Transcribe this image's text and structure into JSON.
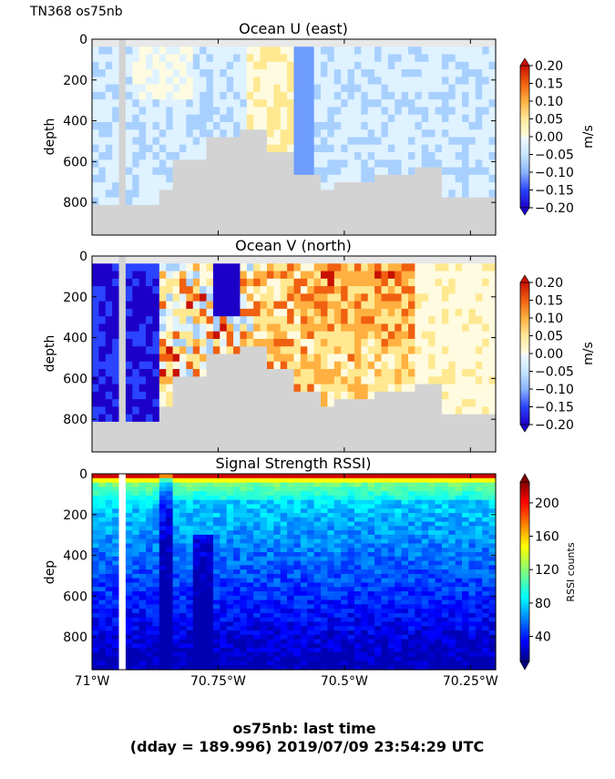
{
  "figure": {
    "corner_label": "TN368 os75nb",
    "footer_line1": "os75nb: last time",
    "footer_line2": "(dday = 189.996) 2019/07/09 23:54:29 UTC"
  },
  "chart_data": [
    {
      "type": "heatmap",
      "title": "Ocean U (east)",
      "ylabel": "depth",
      "xlabel": "",
      "xlim": [
        -71.0,
        -70.2
      ],
      "ylim": [
        960,
        0
      ],
      "y_ticks": [
        0,
        200,
        400,
        600,
        800
      ],
      "colorbar": {
        "label": "m/s",
        "range": [
          -0.2,
          0.2
        ],
        "ticks": [
          "0.20",
          "0.15",
          "0.10",
          "0.05",
          "0.00",
          "−0.05",
          "−0.10",
          "−0.15",
          "−0.20"
        ]
      },
      "colormap": "jet-diverging",
      "description_values": "eastward velocity, mostly -0.05 to 0.05 m/s, positive bands near -70.65 to -70.55, negative cores near -70.58"
    },
    {
      "type": "heatmap",
      "title": "Ocean V (north)",
      "ylabel": "depth",
      "xlabel": "",
      "xlim": [
        -71.0,
        -70.2
      ],
      "ylim": [
        960,
        0
      ],
      "y_ticks": [
        0,
        200,
        400,
        600,
        800
      ],
      "colorbar": {
        "label": "m/s",
        "range": [
          -0.2,
          0.2
        ],
        "ticks": [
          "0.20",
          "0.15",
          "0.10",
          "0.05",
          "0.00",
          "−0.05",
          "−0.10",
          "−0.15",
          "−0.20"
        ]
      },
      "colormap": "jet-diverging"
    },
    {
      "type": "heatmap",
      "title": "Signal Strength RSSI)",
      "ylabel": "dep",
      "xlabel": "",
      "xlim": [
        -71.0,
        -70.2
      ],
      "ylim": [
        960,
        0
      ],
      "y_ticks": [
        0,
        200,
        400,
        600,
        800
      ],
      "x_ticks": [
        {
          "value": -71.0,
          "label": "71°W"
        },
        {
          "value": -70.75,
          "label": "70.75°W"
        },
        {
          "value": -70.5,
          "label": "70.5°W"
        },
        {
          "value": -70.25,
          "label": "70.25°W"
        }
      ],
      "colorbar": {
        "label": "RSSI counts",
        "range": [
          10,
          225
        ],
        "ticks": [
          "200",
          "160",
          "120",
          "80",
          "40"
        ],
        "tick_values": [
          200,
          160,
          120,
          80,
          40
        ]
      },
      "colormap": "jet"
    }
  ],
  "colors": {
    "mask_gray": "#d3d3d3",
    "axis": "#000000"
  }
}
